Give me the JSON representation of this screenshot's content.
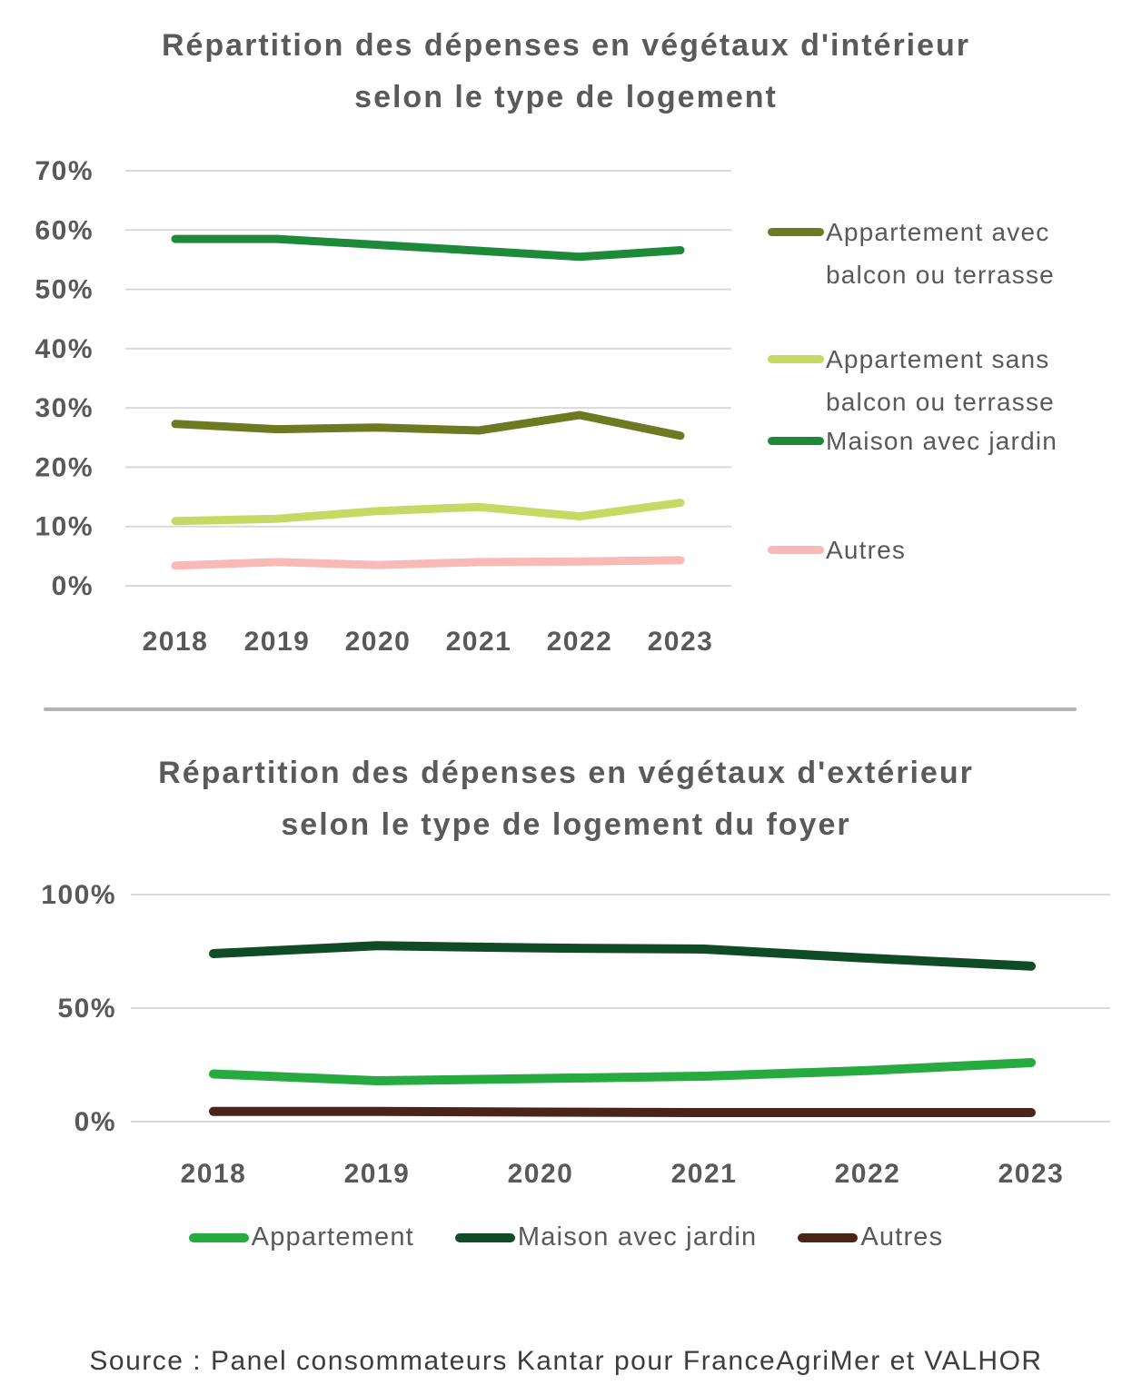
{
  "colors": {
    "text": "#595959",
    "title_text": "#5a5a5a",
    "grid": "#d9d9d9",
    "divider": "#b3b3b3",
    "source_text": "#3d3d3d"
  },
  "source": "Source : Panel consommateurs Kantar pour FranceAgriMer et VALHOR",
  "chart_data": [
    {
      "type": "line",
      "title": "Répartition des dépenses en végétaux d'intérieur selon le type de logement",
      "title_lines": [
        "Répartition des dépenses en végétaux d'intérieur",
        "selon le type de logement"
      ],
      "x": [
        "2018",
        "2019",
        "2020",
        "2021",
        "2022",
        "2023"
      ],
      "ylim": [
        0,
        70
      ],
      "yticks": [
        70,
        60,
        50,
        40,
        30,
        20,
        10,
        0
      ],
      "grid": true,
      "legend_position": "right",
      "series": [
        {
          "name": "Appartement avec balcon ou terrasse",
          "color": "#6e7a22",
          "values": [
            27.3,
            26.4,
            26.7,
            26.2,
            28.8,
            25.3
          ]
        },
        {
          "name": "Appartement sans balcon ou terrasse",
          "color": "#c5da62",
          "values": [
            10.9,
            11.3,
            12.6,
            13.3,
            11.7,
            14.0
          ]
        },
        {
          "name": "Maison avec jardin",
          "color": "#1d8a3a",
          "values": [
            58.5,
            58.5,
            57.5,
            56.5,
            55.5,
            56.6
          ]
        },
        {
          "name": "Autres",
          "color": "#f8b9b7",
          "values": [
            3.4,
            4.0,
            3.5,
            4.0,
            4.1,
            4.3
          ]
        }
      ]
    },
    {
      "type": "line",
      "title": "Répartition des dépenses en végétaux d'extérieur selon le type de logement du foyer",
      "title_lines": [
        "Répartition des dépenses en végétaux d'extérieur",
        "selon le type de logement du foyer"
      ],
      "x": [
        "2018",
        "2019",
        "2020",
        "2021",
        "2022",
        "2023"
      ],
      "ylim": [
        0,
        100
      ],
      "yticks": [
        100,
        50,
        0
      ],
      "grid": true,
      "legend_position": "bottom",
      "series": [
        {
          "name": "Appartement",
          "color": "#27ab40",
          "values": [
            21.0,
            18.0,
            19.0,
            20.0,
            22.5,
            26.0
          ]
        },
        {
          "name": "Maison avec jardin",
          "color": "#0f4c26",
          "values": [
            74.0,
            77.5,
            76.5,
            76.0,
            72.0,
            68.5
          ]
        },
        {
          "name": "Autres",
          "color": "#4a2517",
          "values": [
            4.5,
            4.5,
            4.2,
            4.0,
            4.0,
            4.0
          ]
        }
      ]
    }
  ]
}
